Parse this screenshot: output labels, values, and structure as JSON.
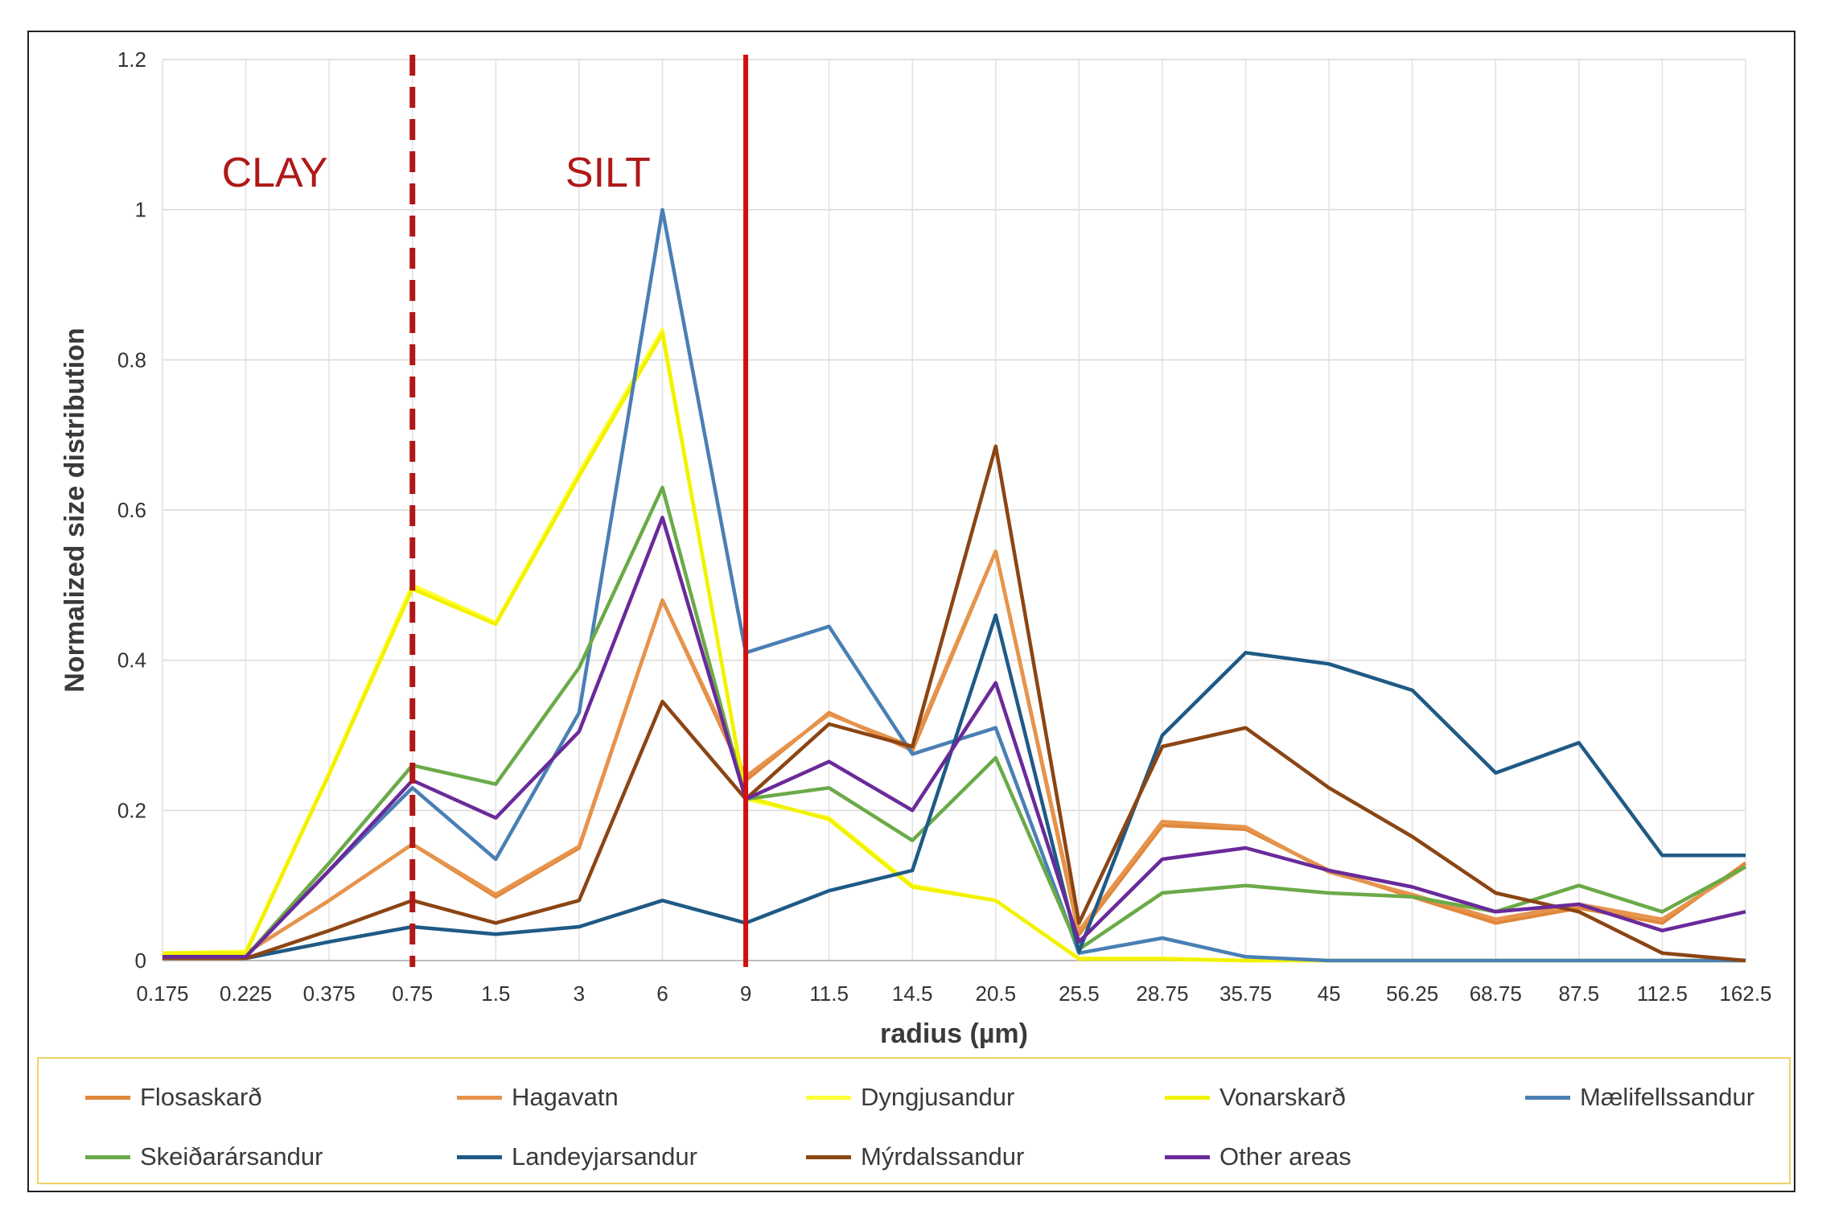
{
  "chart_data": {
    "type": "line",
    "title": "",
    "xlabel": "radius (µm)",
    "ylabel": "Normalized size distribution",
    "ylim": [
      0,
      1.2
    ],
    "yticks": [
      "0",
      "0.2",
      "0.4",
      "0.6",
      "0.8",
      "1",
      "1.2"
    ],
    "categories": [
      "0.175",
      "0.225",
      "0.375",
      "0.75",
      "1.5",
      "3",
      "6",
      "9",
      "11.5",
      "14.5",
      "20.5",
      "25.5",
      "28.75",
      "35.75",
      "45",
      "56.25",
      "68.75",
      "87.5",
      "112.5",
      "162.5"
    ],
    "grid": true,
    "legend_position": "bottom",
    "annotations": [
      {
        "text": "CLAY",
        "x_category": "0.225",
        "y": 1.05,
        "color": "#b01818"
      },
      {
        "text": "SILT",
        "x_category": "3",
        "y": 1.05,
        "color": "#b01818"
      }
    ],
    "reference_lines": [
      {
        "x_category": "0.75",
        "style": "dashed",
        "color": "#b01818"
      },
      {
        "x_category": "9",
        "style": "solid",
        "color": "#d01010"
      }
    ],
    "series": [
      {
        "name": "Flosaskarð",
        "color": "#e0873a",
        "values": [
          0.01,
          0.01,
          0.08,
          0.155,
          0.085,
          0.15,
          0.48,
          0.24,
          0.33,
          0.28,
          0.545,
          0.035,
          0.18,
          0.175,
          0.12,
          0.085,
          0.05,
          0.07,
          0.05,
          0.13
        ]
      },
      {
        "name": "Hagavatn",
        "color": "#e6944c",
        "values": [
          0.01,
          0.01,
          0.08,
          0.155,
          0.088,
          0.152,
          0.48,
          0.245,
          0.328,
          0.285,
          0.545,
          0.04,
          0.185,
          0.178,
          0.118,
          0.088,
          0.055,
          0.075,
          0.055,
          0.125
        ]
      },
      {
        "name": "Dyngjusandur",
        "color": "#ffff33",
        "values": [
          0.01,
          0.012,
          0.25,
          0.5,
          0.45,
          0.65,
          0.84,
          0.215,
          0.19,
          0.1,
          0.08,
          0.003,
          0.003,
          0.0,
          0.0,
          0.0,
          0.0,
          0.0,
          0.0,
          0.0
        ]
      },
      {
        "name": "Vonarskarð",
        "color": "#f2f200",
        "values": [
          0.01,
          0.01,
          0.248,
          0.495,
          0.448,
          0.645,
          0.835,
          0.218,
          0.188,
          0.098,
          0.08,
          0.002,
          0.002,
          0.0,
          0.0,
          0.0,
          0.0,
          0.0,
          0.0,
          0.0
        ]
      },
      {
        "name": "Mælifellssandur",
        "color": "#4a7fb5",
        "values": [
          0.005,
          0.005,
          0.12,
          0.23,
          0.135,
          0.33,
          1.0,
          0.41,
          0.445,
          0.275,
          0.31,
          0.01,
          0.03,
          0.005,
          0.0,
          0.0,
          0.0,
          0.0,
          0.0,
          0.0
        ]
      },
      {
        "name": "Skeiðarársandur",
        "color": "#6aaa48",
        "values": [
          0.005,
          0.005,
          0.13,
          0.26,
          0.235,
          0.39,
          0.63,
          0.215,
          0.23,
          0.16,
          0.27,
          0.015,
          0.09,
          0.1,
          0.09,
          0.085,
          0.065,
          0.1,
          0.065,
          0.125
        ]
      },
      {
        "name": "Landeyjarsandur",
        "color": "#1f5a85",
        "values": [
          0.003,
          0.003,
          0.025,
          0.045,
          0.035,
          0.045,
          0.08,
          0.05,
          0.093,
          0.12,
          0.46,
          0.012,
          0.3,
          0.41,
          0.395,
          0.36,
          0.25,
          0.29,
          0.14,
          0.14
        ]
      },
      {
        "name": "Mýrdalssandur",
        "color": "#8b4513",
        "values": [
          0.003,
          0.003,
          0.04,
          0.08,
          0.05,
          0.08,
          0.345,
          0.215,
          0.315,
          0.285,
          0.685,
          0.05,
          0.285,
          0.31,
          0.23,
          0.165,
          0.09,
          0.065,
          0.01,
          0.0
        ]
      },
      {
        "name": "Other areas",
        "color": "#6a2a9a",
        "values": [
          0.005,
          0.005,
          0.12,
          0.24,
          0.19,
          0.305,
          0.59,
          0.215,
          0.265,
          0.2,
          0.37,
          0.025,
          0.135,
          0.15,
          0.12,
          0.098,
          0.065,
          0.075,
          0.04,
          0.065
        ]
      }
    ]
  }
}
